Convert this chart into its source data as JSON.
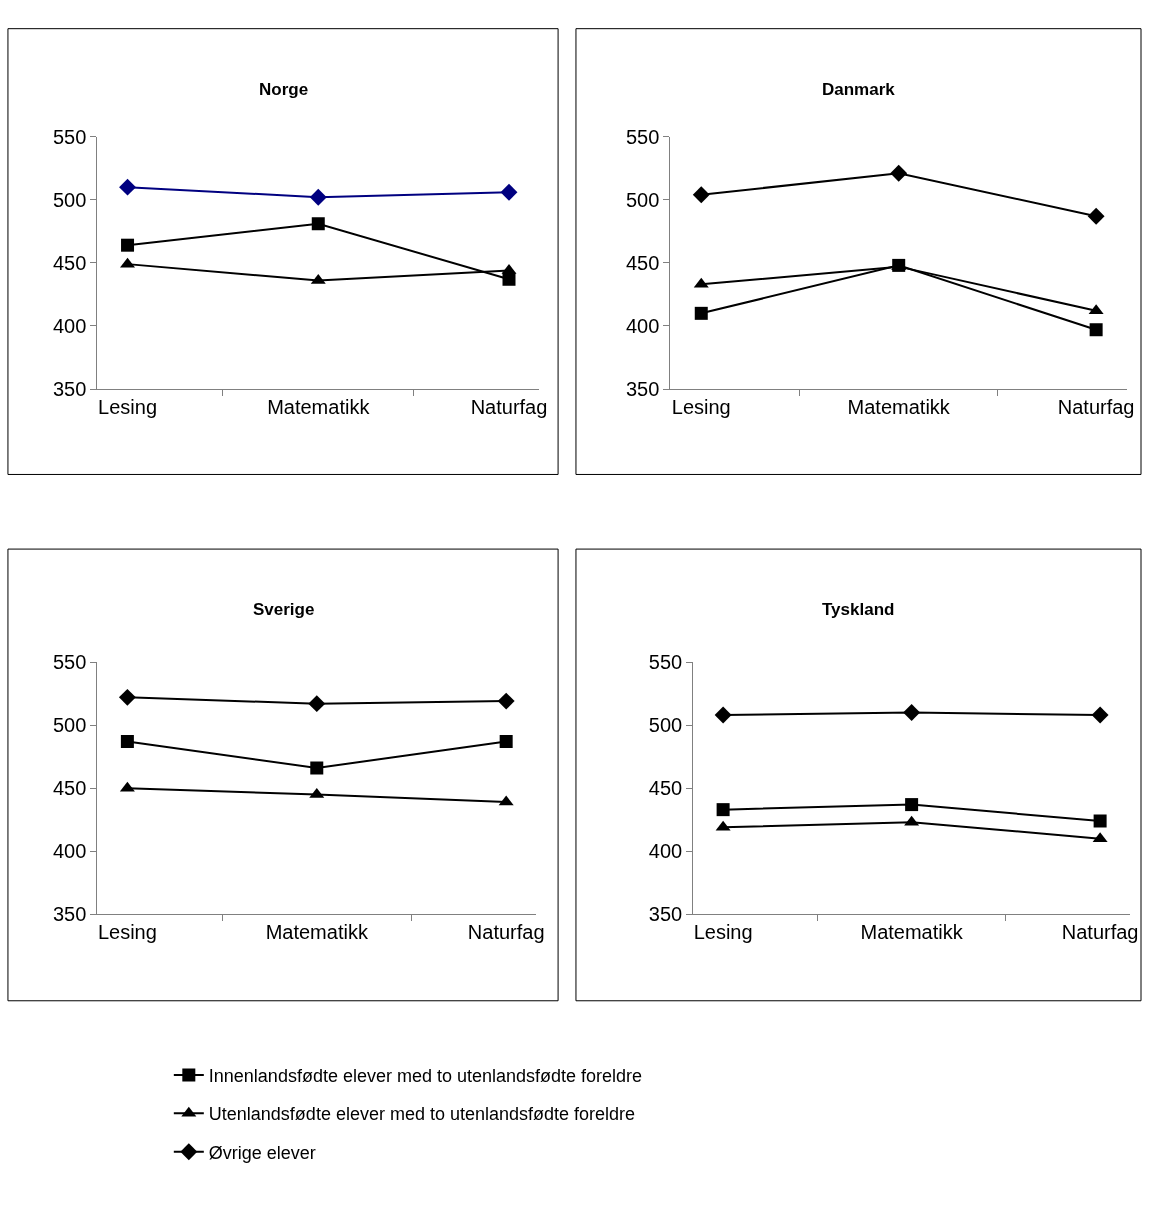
{
  "chart_data": [
    {
      "type": "line",
      "title": "Norge",
      "categories": [
        "Lesing",
        "Matematikk",
        "Naturfag"
      ],
      "ylim": [
        350,
        550
      ],
      "yticks": [
        350,
        400,
        450,
        500,
        550
      ],
      "series": [
        {
          "color": "#000000",
          "marker": "square",
          "values": [
            464,
            481,
            437
          ]
        },
        {
          "color": "#000000",
          "marker": "triangle",
          "values": [
            449,
            436,
            444
          ]
        },
        {
          "color": "#000080",
          "marker": "diamond",
          "values": [
            510,
            502,
            506
          ]
        }
      ]
    },
    {
      "type": "line",
      "title": "Danmark",
      "categories": [
        "Lesing",
        "Matematikk",
        "Naturfag"
      ],
      "ylim": [
        350,
        550
      ],
      "yticks": [
        350,
        400,
        450,
        500,
        550
      ],
      "series": [
        {
          "color": "#000000",
          "marker": "square",
          "values": [
            410,
            448,
            397
          ]
        },
        {
          "color": "#000000",
          "marker": "triangle",
          "values": [
            433,
            447,
            412
          ]
        },
        {
          "color": "#000000",
          "marker": "diamond",
          "values": [
            504,
            521,
            487
          ]
        }
      ]
    },
    {
      "type": "line",
      "title": "Sverige",
      "categories": [
        "Lesing",
        "Matematikk",
        "Naturfag"
      ],
      "ylim": [
        350,
        550
      ],
      "yticks": [
        350,
        400,
        450,
        500,
        550
      ],
      "series": [
        {
          "color": "#000000",
          "marker": "square",
          "values": [
            487,
            466,
            487
          ]
        },
        {
          "color": "#000000",
          "marker": "triangle",
          "values": [
            450,
            445,
            439
          ]
        },
        {
          "color": "#000000",
          "marker": "diamond",
          "values": [
            522,
            517,
            519
          ]
        }
      ]
    },
    {
      "type": "line",
      "title": "Tyskland",
      "categories": [
        "Lesing",
        "Matematikk",
        "Naturfag"
      ],
      "ylim": [
        350,
        550
      ],
      "yticks": [
        350,
        400,
        450,
        500,
        550
      ],
      "legend": "bottom",
      "series": [
        {
          "name": "Innenlandsfødte elever med to utenlandsfødte foreldre",
          "color": "#000000",
          "marker": "square",
          "values": [
            433,
            437,
            424
          ]
        },
        {
          "name": "Utenlandsfødte elever med to utenlandsfødte foreldre",
          "color": "#000000",
          "marker": "triangle",
          "values": [
            419,
            423,
            410
          ]
        },
        {
          "name": "Øvrige elever",
          "color": "#000000",
          "marker": "diamond",
          "values": [
            508,
            510,
            508
          ]
        }
      ]
    }
  ]
}
